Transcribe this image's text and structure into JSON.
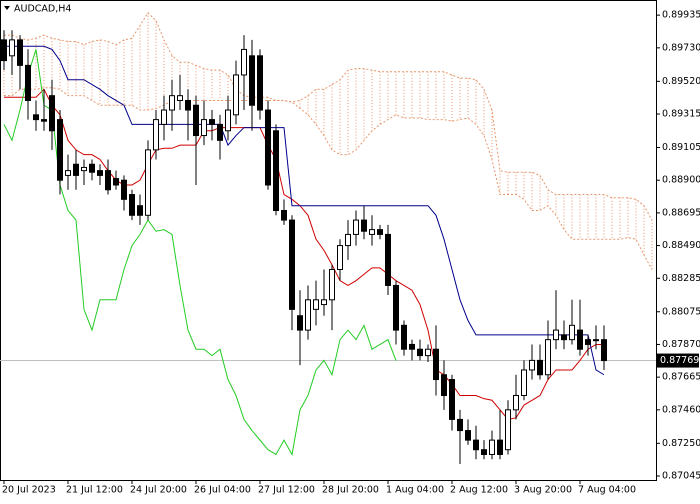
{
  "chart_data": {
    "type": "candlestick",
    "title": "AUDCAD,H4",
    "xlim": [
      -0.5,
      81.5
    ],
    "ylim": [
      0.8702,
      0.9003
    ],
    "xticks": [
      {
        "value": 0,
        "label": "20 Jul 2023"
      },
      {
        "value": 8,
        "label": "21 Jul 12:00"
      },
      {
        "value": 16,
        "label": "24 Jul 20:00"
      },
      {
        "value": 24,
        "label": "26 Jul 04:00"
      },
      {
        "value": 32,
        "label": "27 Jul 12:00"
      },
      {
        "value": 40,
        "label": "28 Jul 20:00"
      },
      {
        "value": 48,
        "label": "1 Aug 04:00"
      },
      {
        "value": 56,
        "label": "2 Aug 12:00"
      },
      {
        "value": 64,
        "label": "3 Aug 20:00"
      },
      {
        "value": 72,
        "label": "7 Aug 04:00"
      }
    ],
    "yticks": [
      0.89935,
      {
        "value": 0.8973,
        "label": "0.89730"
      },
      {
        "value": 0.8952,
        "label": "0.89520"
      },
      0.89315,
      0.89105,
      {
        "value": 0.889,
        "label": "0.88900"
      },
      0.88695,
      {
        "value": 0.8849,
        "label": "0.88490"
      },
      0.88285,
      0.88075,
      {
        "value": 0.8787,
        "label": "0.87870"
      },
      0.87665,
      {
        "value": 0.8746,
        "label": "0.87460"
      },
      {
        "value": 0.8725,
        "label": "0.87250"
      },
      0.87045
    ],
    "candles": {
      "up_color": "#ffffff",
      "down_color": "#000000",
      "open": [
        0.8978,
        0.8968,
        0.8978,
        0.8962,
        0.8931,
        0.8928,
        0.8943,
        0.8928,
        0.8893,
        0.89,
        0.8896,
        0.89,
        0.8896,
        0.8896,
        0.8891,
        0.889,
        0.8881,
        0.8874,
        0.8868,
        0.8909,
        0.8925,
        0.8934,
        0.894,
        0.894,
        0.8937,
        0.8918,
        0.8928,
        0.8925,
        0.8921,
        0.8931,
        0.8956,
        0.8968,
        0.8968,
        0.8934,
        0.8921,
        0.8871,
        0.8865,
        0.8805,
        0.8796,
        0.8809,
        0.8812,
        0.8815,
        0.8834,
        0.8849,
        0.8856,
        0.8865,
        0.8856,
        0.8859,
        0.8856,
        0.8824,
        0.8799,
        0.8787,
        0.8784,
        0.878,
        0.8784,
        0.8768,
        0.8765,
        0.874,
        0.8733,
        0.8727,
        0.8721,
        0.8718,
        0.8727,
        0.8721,
        0.8746,
        0.8755,
        0.8771,
        0.8777,
        0.8768,
        0.879,
        0.8793,
        0.879,
        0.8796,
        0.879,
        0.879,
        0.879
      ],
      "high": [
        0.8984,
        0.8984,
        0.8981,
        0.8972,
        0.894,
        0.8947,
        0.8953,
        0.8934,
        0.8906,
        0.8909,
        0.8903,
        0.8903,
        0.89,
        0.8903,
        0.8896,
        0.8893,
        0.8884,
        0.8881,
        0.8915,
        0.8934,
        0.8943,
        0.8953,
        0.8956,
        0.8947,
        0.8943,
        0.894,
        0.8934,
        0.8931,
        0.8943,
        0.8965,
        0.8981,
        0.8978,
        0.8972,
        0.894,
        0.8925,
        0.8878,
        0.8868,
        0.8821,
        0.8824,
        0.8827,
        0.8834,
        0.8837,
        0.8853,
        0.8865,
        0.8871,
        0.8874,
        0.8868,
        0.8862,
        0.8862,
        0.8827,
        0.8802,
        0.879,
        0.879,
        0.8787,
        0.8799,
        0.8777,
        0.8768,
        0.8746,
        0.874,
        0.8736,
        0.8727,
        0.8733,
        0.8746,
        0.8752,
        0.8768,
        0.8777,
        0.8787,
        0.8787,
        0.8802,
        0.8821,
        0.8802,
        0.8815,
        0.8815,
        0.8793,
        0.8799,
        0.8799
      ],
      "low": [
        0.8959,
        0.8956,
        0.8947,
        0.8928,
        0.8921,
        0.8921,
        0.8909,
        0.8881,
        0.8884,
        0.8884,
        0.8887,
        0.889,
        0.8887,
        0.8881,
        0.8884,
        0.8871,
        0.8865,
        0.8862,
        0.8865,
        0.8903,
        0.8915,
        0.8921,
        0.8934,
        0.8915,
        0.8887,
        0.8912,
        0.8915,
        0.8903,
        0.8915,
        0.8925,
        0.8934,
        0.8921,
        0.8928,
        0.8884,
        0.8868,
        0.8862,
        0.8796,
        0.8774,
        0.879,
        0.8799,
        0.8805,
        0.8796,
        0.8827,
        0.884,
        0.8849,
        0.8853,
        0.8849,
        0.8853,
        0.8818,
        0.8787,
        0.878,
        0.8777,
        0.8777,
        0.8776,
        0.8755,
        0.8746,
        0.8733,
        0.8712,
        0.8724,
        0.8715,
        0.8715,
        0.8715,
        0.8715,
        0.8718,
        0.874,
        0.8752,
        0.8765,
        0.8765,
        0.8765,
        0.8784,
        0.8784,
        0.8787,
        0.878,
        0.878,
        0.8784,
        0.8771
      ],
      "close": [
        0.8965,
        0.8978,
        0.8962,
        0.894,
        0.8928,
        0.8927,
        0.8921,
        0.889,
        0.8896,
        0.8893,
        0.8898,
        0.8895,
        0.8893,
        0.8884,
        0.8887,
        0.8878,
        0.8868,
        0.8868,
        0.8909,
        0.8928,
        0.8934,
        0.8943,
        0.8943,
        0.8934,
        0.8918,
        0.8928,
        0.8925,
        0.8915,
        0.8934,
        0.8956,
        0.8972,
        0.8937,
        0.8934,
        0.8887,
        0.8871,
        0.8865,
        0.8809,
        0.8796,
        0.8815,
        0.8815,
        0.8815,
        0.8834,
        0.8849,
        0.8856,
        0.8865,
        0.8858,
        0.8859,
        0.8856,
        0.8824,
        0.8796,
        0.8784,
        0.8784,
        0.878,
        0.8784,
        0.8765,
        0.8755,
        0.874,
        0.8733,
        0.8727,
        0.8721,
        0.8718,
        0.8727,
        0.8718,
        0.8746,
        0.8755,
        0.8771,
        0.8777,
        0.8768,
        0.879,
        0.8796,
        0.879,
        0.8799,
        0.8784,
        0.8787,
        0.879,
        0.87769
      ]
    },
    "last_price_color": "#c0c0c0",
    "lines": [
      {
        "color": "#d00000",
        "values": [
          0.8942,
          0.8942,
          0.8942,
          0.8942,
          0.8942,
          0.8947,
          0.8937,
          0.8931,
          0.8915,
          0.8909,
          0.8906,
          0.8906,
          0.8903,
          0.8896,
          0.889,
          0.8887,
          0.8887,
          0.889,
          0.89,
          0.8909,
          0.891,
          0.891,
          0.8912,
          0.8912,
          0.8912,
          0.8921,
          0.8921,
          0.8923,
          0.8923,
          0.8923,
          0.8923,
          0.8923,
          0.8923,
          0.8912,
          0.8903,
          0.8881,
          0.8878,
          0.8874,
          0.8868,
          0.8853,
          0.8846,
          0.8837,
          0.8827,
          0.8824,
          0.8827,
          0.8831,
          0.8835,
          0.8835,
          0.8831,
          0.8827,
          0.8824,
          0.8821,
          0.8812,
          0.8796,
          0.8771,
          0.8768,
          0.8762,
          0.8755,
          0.8755,
          0.8755,
          0.8753,
          0.8752,
          0.8746,
          0.874,
          0.8741,
          0.8749,
          0.8752,
          0.8755,
          0.8765,
          0.8771,
          0.8771,
          0.8771,
          0.8777,
          0.8784,
          0.8787,
          0.8787
        ]
      },
      {
        "color": "#00008b",
        "values": [
          0.8974,
          0.8974,
          0.8974,
          0.8974,
          0.8974,
          0.8974,
          0.8972,
          0.8965,
          0.8953,
          0.8953,
          0.8953,
          0.895,
          0.8947,
          0.8943,
          0.894,
          0.8937,
          0.8925,
          0.8925,
          0.8925,
          0.8925,
          0.8925,
          0.8925,
          0.8925,
          0.8925,
          0.8925,
          0.8925,
          0.8925,
          0.8925,
          0.8912,
          0.8918,
          0.8923,
          0.8923,
          0.8923,
          0.8923,
          0.8923,
          0.8923,
          0.8874,
          0.8874,
          0.8874,
          0.8874,
          0.8874,
          0.8874,
          0.8874,
          0.8874,
          0.8874,
          0.8874,
          0.8874,
          0.8874,
          0.8874,
          0.8874,
          0.8874,
          0.8874,
          0.8874,
          0.8874,
          0.8868,
          0.8853,
          0.8834,
          0.8815,
          0.8802,
          0.8793,
          0.8793,
          0.8793,
          0.8793,
          0.8793,
          0.8793,
          0.8793,
          0.8793,
          0.8793,
          0.8793,
          0.8793,
          0.8793,
          0.8793,
          0.8793,
          0.8793,
          0.8771,
          0.8768
        ]
      },
      {
        "color": "#22cc22",
        "values": [
          0.8925,
          0.8915,
          0.8934,
          0.8956,
          0.8972,
          0.8937,
          0.8934,
          0.8887,
          0.8871,
          0.8865,
          0.8809,
          0.8796,
          0.8815,
          0.8815,
          0.8815,
          0.8834,
          0.8849,
          0.8856,
          0.8865,
          0.8858,
          0.8859,
          0.8856,
          0.8824,
          0.8796,
          0.8784,
          0.8784,
          0.878,
          0.8784,
          0.8765,
          0.8755,
          0.874,
          0.8733,
          0.8727,
          0.8721,
          0.8718,
          0.8727,
          0.8718,
          0.8746,
          0.8755,
          0.8771,
          0.8777,
          0.8768,
          0.879,
          0.8796,
          0.879,
          0.8799,
          0.8784,
          0.8787,
          0.879,
          0.87769,
          null,
          null,
          null,
          null,
          null,
          null,
          null,
          null,
          null,
          null,
          null,
          null,
          null,
          null,
          null,
          null,
          null,
          null,
          null,
          null,
          null,
          null,
          null,
          null,
          null,
          null
        ]
      }
    ],
    "cloud": {
      "color": "#e8956a",
      "upper": [
        0.8981,
        0.8981,
        0.8979,
        0.8978,
        0.8979,
        0.8981,
        0.8979,
        0.8978,
        0.8977,
        0.8977,
        0.8975,
        0.8977,
        0.8978,
        0.8977,
        0.8975,
        0.8978,
        0.8979,
        0.8987,
        0.8995,
        0.899,
        0.8978,
        0.8968,
        0.8964,
        0.8964,
        0.8962,
        0.896,
        0.8959,
        0.8959,
        0.8956,
        0.8947,
        0.8943,
        0.8942,
        0.8942,
        0.8942,
        0.894,
        0.894,
        0.8939,
        0.894,
        0.8943,
        0.8947,
        0.8947,
        0.895,
        0.8953,
        0.8959,
        0.896,
        0.896,
        0.8959,
        0.8958,
        0.8958,
        0.8958,
        0.8958,
        0.8958,
        0.8958,
        0.8958,
        0.8958,
        0.8958,
        0.8956,
        0.8954,
        0.8954,
        0.8953,
        0.8947,
        0.8934,
        0.8896,
        0.8895,
        0.8895,
        0.8895,
        0.8895,
        0.8893,
        0.8884,
        0.8881,
        0.8881,
        0.8881,
        0.8881,
        0.8881,
        0.8881,
        0.8881,
        0.8879,
        0.8879,
        0.8879,
        0.8878,
        0.8874,
        0.8865
      ],
      "lower": [
        0.8943,
        0.8943,
        0.8947,
        0.8947,
        0.8947,
        0.8948,
        0.8948,
        0.8947,
        0.8943,
        0.8943,
        0.8943,
        0.894,
        0.8937,
        0.8937,
        0.8937,
        0.8937,
        0.8937,
        0.8934,
        0.8934,
        0.8935,
        0.8937,
        0.894,
        0.894,
        0.894,
        0.894,
        0.894,
        0.894,
        0.894,
        0.894,
        0.894,
        0.894,
        0.894,
        0.894,
        0.894,
        0.894,
        0.894,
        0.8939,
        0.8935,
        0.8931,
        0.8925,
        0.8918,
        0.8909,
        0.8906,
        0.8906,
        0.8909,
        0.8915,
        0.8921,
        0.8925,
        0.8928,
        0.8931,
        0.8929,
        0.8929,
        0.8929,
        0.8928,
        0.8928,
        0.8928,
        0.8927,
        0.8928,
        0.8929,
        0.8925,
        0.8918,
        0.8903,
        0.8881,
        0.8881,
        0.8881,
        0.8878,
        0.8871,
        0.8871,
        0.8874,
        0.8868,
        0.8859,
        0.8853,
        0.8853,
        0.8853,
        0.8853,
        0.8853,
        0.8853,
        0.8853,
        0.8854,
        0.8853,
        0.8843,
        0.8834
      ]
    }
  }
}
